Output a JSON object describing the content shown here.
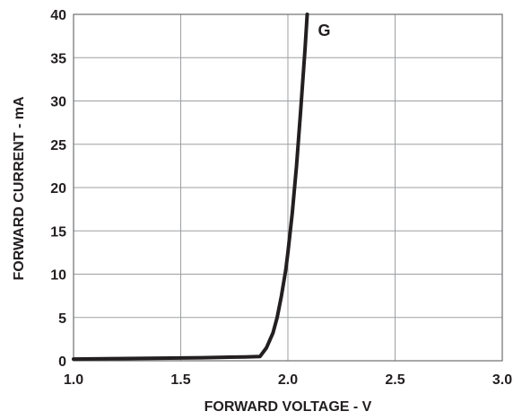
{
  "chart_data": {
    "type": "line",
    "title": "",
    "xlabel": "FORWARD VOLTAGE - V",
    "ylabel": "FORWARD CURRENT - mA",
    "xlim": [
      1.0,
      3.0
    ],
    "ylim": [
      0,
      40
    ],
    "x_ticks": [
      "1.0",
      "1.5",
      "2.0",
      "2.5",
      "3.0"
    ],
    "y_ticks": [
      "0",
      "5",
      "10",
      "15",
      "20",
      "25",
      "30",
      "35",
      "40"
    ],
    "grid": true,
    "series": [
      {
        "name": "G",
        "color": "#231f20",
        "x": [
          1.0,
          1.2,
          1.4,
          1.6,
          1.8,
          1.87,
          1.9,
          1.93,
          1.95,
          1.97,
          1.99,
          2.0,
          2.02,
          2.04,
          2.06,
          2.08,
          2.09
        ],
        "y": [
          0.2,
          0.25,
          0.3,
          0.35,
          0.45,
          0.5,
          1.5,
          3.2,
          5.0,
          7.5,
          10.5,
          12.5,
          17.0,
          22.5,
          29.0,
          36.0,
          40.0
        ]
      }
    ]
  }
}
